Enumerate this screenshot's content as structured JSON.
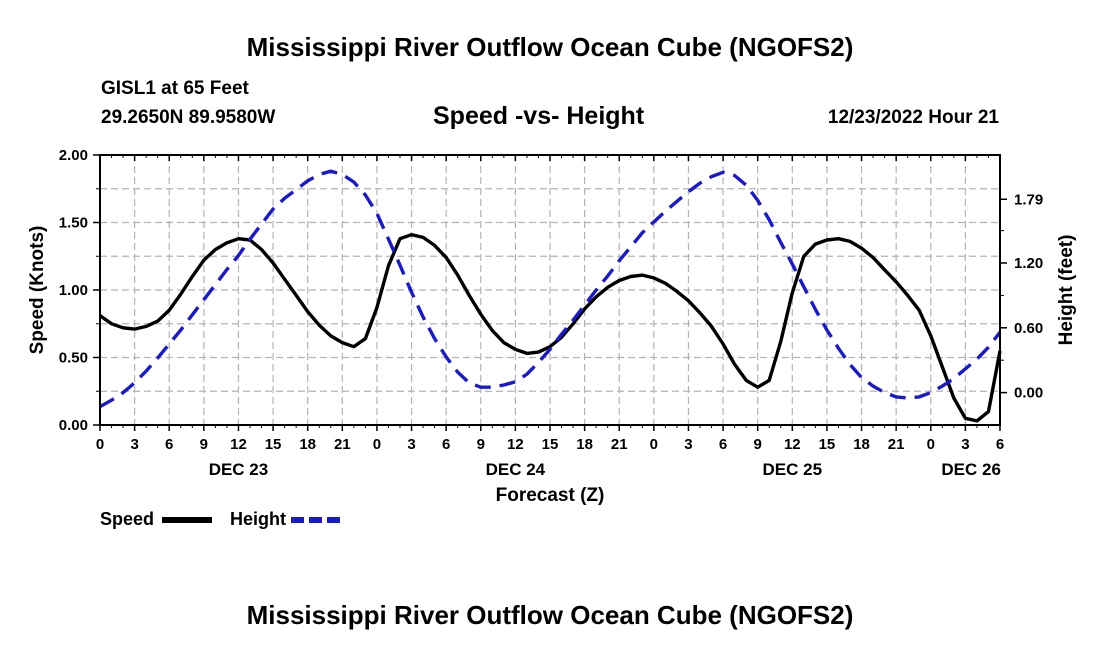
{
  "page": {
    "title_top": "Mississippi River Outflow Ocean Cube (NGOFS2)",
    "title_bottom": "Mississippi River Outflow Ocean Cube (NGOFS2)",
    "station": "GISL1 at 65 Feet",
    "coords": "29.2650N  89.9580W",
    "plot_title": "Speed -vs- Height",
    "timestamp": "12/23/2022 Hour 21"
  },
  "legend": {
    "speed_label": "Speed",
    "height_label": "Height"
  },
  "colors": {
    "speed": "#000000",
    "height": "#1a1acc",
    "grid": "#b4b4b4"
  },
  "chart_data": {
    "type": "line",
    "title": "Speed -vs- Height",
    "xlabel": "Forecast (Z)",
    "ylabel": "Speed (Knots)",
    "y2label": "Height (feet)",
    "grid": true,
    "xlim": [
      0,
      78
    ],
    "ylim": [
      0,
      2
    ],
    "y2lim": [
      -0.3,
      2.2
    ],
    "x_ticks": [
      0,
      3,
      6,
      9,
      12,
      15,
      18,
      21,
      24,
      27,
      30,
      33,
      36,
      39,
      42,
      45,
      48,
      51,
      54,
      57,
      60,
      63,
      66,
      69,
      72,
      75,
      78
    ],
    "x_tick_labels": [
      "0",
      "3",
      "6",
      "9",
      "12",
      "15",
      "18",
      "21",
      "0",
      "3",
      "6",
      "9",
      "12",
      "15",
      "18",
      "21",
      "0",
      "3",
      "6",
      "9",
      "12",
      "15",
      "18",
      "21",
      "0",
      "3",
      "6"
    ],
    "date_labels": [
      {
        "x": 12,
        "label": "DEC 23"
      },
      {
        "x": 36,
        "label": "DEC 24"
      },
      {
        "x": 60,
        "label": "DEC 25"
      },
      {
        "x": 75.5,
        "label": "DEC 26"
      }
    ],
    "y_ticks": [
      0,
      0.5,
      1,
      1.5,
      2
    ],
    "y_tick_labels": [
      "0.00",
      "0.50",
      "1.00",
      "1.50",
      "2.00"
    ],
    "y2_ticks": [
      0,
      0.6,
      1.2,
      1.79
    ],
    "y2_tick_labels": [
      "0.00",
      "0.60",
      "1.20",
      "1.79"
    ],
    "series": [
      {
        "name": "Speed",
        "axis": "left",
        "style": "solid",
        "x": [
          0,
          1,
          2,
          3,
          4,
          5,
          6,
          7,
          8,
          9,
          10,
          11,
          12,
          13,
          14,
          15,
          16,
          17,
          18,
          19,
          20,
          21,
          22,
          23,
          24,
          25,
          26,
          27,
          28,
          29,
          30,
          31,
          32,
          33,
          34,
          35,
          36,
          37,
          38,
          39,
          40,
          41,
          42,
          43,
          44,
          45,
          46,
          47,
          48,
          49,
          50,
          51,
          52,
          53,
          54,
          55,
          56,
          57,
          58,
          59,
          60,
          61,
          62,
          63,
          64,
          65,
          66,
          67,
          68,
          69,
          70,
          71,
          72,
          73,
          74,
          75,
          76,
          77,
          78
        ],
        "values": [
          0.81,
          0.75,
          0.72,
          0.71,
          0.73,
          0.77,
          0.85,
          0.97,
          1.1,
          1.22,
          1.3,
          1.35,
          1.38,
          1.37,
          1.3,
          1.2,
          1.08,
          0.96,
          0.84,
          0.74,
          0.66,
          0.61,
          0.58,
          0.64,
          0.87,
          1.18,
          1.38,
          1.41,
          1.39,
          1.33,
          1.24,
          1.11,
          0.96,
          0.82,
          0.7,
          0.61,
          0.56,
          0.53,
          0.54,
          0.58,
          0.65,
          0.75,
          0.86,
          0.95,
          1.02,
          1.07,
          1.1,
          1.11,
          1.09,
          1.05,
          0.99,
          0.92,
          0.83,
          0.73,
          0.6,
          0.45,
          0.33,
          0.28,
          0.33,
          0.62,
          0.98,
          1.25,
          1.34,
          1.37,
          1.38,
          1.36,
          1.31,
          1.24,
          1.15,
          1.06,
          0.96,
          0.85,
          0.66,
          0.43,
          0.2,
          0.05,
          0.03,
          0.1,
          0.55
        ]
      },
      {
        "name": "Height",
        "axis": "right",
        "style": "dashed",
        "x": [
          0,
          1,
          2,
          3,
          4,
          5,
          6,
          7,
          8,
          9,
          10,
          11,
          12,
          13,
          14,
          15,
          16,
          17,
          18,
          19,
          20,
          21,
          22,
          23,
          24,
          25,
          26,
          27,
          28,
          29,
          30,
          31,
          32,
          33,
          34,
          35,
          36,
          37,
          38,
          39,
          40,
          41,
          42,
          43,
          44,
          45,
          46,
          47,
          48,
          49,
          50,
          51,
          52,
          53,
          54,
          55,
          56,
          57,
          58,
          59,
          60,
          61,
          62,
          63,
          64,
          65,
          66,
          67,
          68,
          69,
          70,
          71,
          72,
          73,
          74,
          75,
          76,
          77,
          78
        ],
        "values": [
          -0.13,
          -0.07,
          0.0,
          0.09,
          0.2,
          0.32,
          0.45,
          0.58,
          0.72,
          0.86,
          1.0,
          1.14,
          1.27,
          1.42,
          1.56,
          1.7,
          1.8,
          1.88,
          1.96,
          2.02,
          2.05,
          2.02,
          1.95,
          1.83,
          1.66,
          1.42,
          1.18,
          0.93,
          0.7,
          0.5,
          0.33,
          0.19,
          0.09,
          0.05,
          0.05,
          0.07,
          0.1,
          0.17,
          0.28,
          0.4,
          0.54,
          0.67,
          0.81,
          0.95,
          1.08,
          1.22,
          1.35,
          1.48,
          1.58,
          1.68,
          1.77,
          1.86,
          1.94,
          2.0,
          2.04,
          2.01,
          1.92,
          1.78,
          1.6,
          1.39,
          1.19,
          0.98,
          0.77,
          0.58,
          0.41,
          0.26,
          0.14,
          0.06,
          0.0,
          -0.04,
          -0.05,
          -0.04,
          0.0,
          0.06,
          0.13,
          0.22,
          0.31,
          0.42,
          0.56
        ]
      }
    ]
  }
}
